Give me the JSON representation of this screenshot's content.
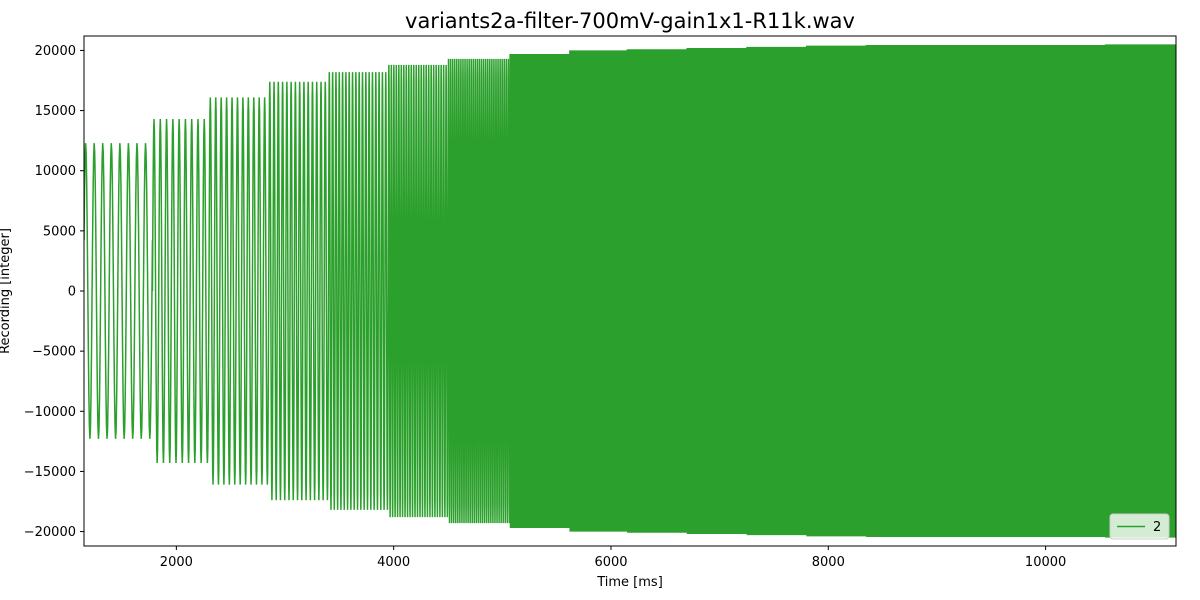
{
  "chart_data": {
    "type": "line",
    "title": "variants2a-filter-700mV-gain1x1-R11k.wav",
    "xlabel": "Time [ms]",
    "ylabel": "Recording [integer]",
    "xlim": [
      1150,
      11200
    ],
    "ylim": [
      -21200,
      21200
    ],
    "x_ticks": [
      2000,
      4000,
      6000,
      8000,
      10000
    ],
    "x_tick_labels": [
      "2000",
      "4000",
      "6000",
      "8000",
      "10000"
    ],
    "y_ticks": [
      -20000,
      -15000,
      -10000,
      -5000,
      0,
      5000,
      10000,
      15000,
      20000
    ],
    "y_tick_labels": [
      "−20000",
      "−15000",
      "−10000",
      "−5000",
      "0",
      "5000",
      "10000",
      "15000",
      "20000"
    ],
    "grid": false,
    "legend_position": "lower-right",
    "series": [
      {
        "name": "2",
        "color": "#2ca02c",
        "description": "stepped frequency sweep; per-step amplitude envelope",
        "steps": [
          {
            "start": 1150,
            "end": 1780,
            "cycles": 8,
            "amplitude": 12300
          },
          {
            "start": 1780,
            "end": 2300,
            "cycles": 9,
            "amplitude": 14300
          },
          {
            "start": 2300,
            "end": 2850,
            "cycles": 11,
            "amplitude": 16100
          },
          {
            "start": 2850,
            "end": 3400,
            "cycles": 14,
            "amplitude": 17400
          },
          {
            "start": 3400,
            "end": 3950,
            "cycles": 18,
            "amplitude": 18200
          },
          {
            "start": 3950,
            "end": 4500,
            "cycles": 24,
            "amplitude": 18800
          },
          {
            "start": 4500,
            "end": 5070,
            "cycles": 30,
            "amplitude": 19300
          },
          {
            "start": 5070,
            "end": 5620,
            "cycles": 80,
            "amplitude": 19700
          },
          {
            "start": 5620,
            "end": 6150,
            "cycles": 90,
            "amplitude": 20000
          },
          {
            "start": 6150,
            "end": 6700,
            "cycles": 90,
            "amplitude": 20100
          },
          {
            "start": 6700,
            "end": 7250,
            "cycles": 90,
            "amplitude": 20200
          },
          {
            "start": 7250,
            "end": 7800,
            "cycles": 90,
            "amplitude": 20300
          },
          {
            "start": 7800,
            "end": 8350,
            "cycles": 90,
            "amplitude": 20400
          },
          {
            "start": 8350,
            "end": 8900,
            "cycles": 90,
            "amplitude": 20450
          },
          {
            "start": 8900,
            "end": 9450,
            "cycles": 90,
            "amplitude": 20450
          },
          {
            "start": 9450,
            "end": 10000,
            "cycles": 90,
            "amplitude": 20450
          },
          {
            "start": 10000,
            "end": 10550,
            "cycles": 90,
            "amplitude": 20450
          },
          {
            "start": 10550,
            "end": 11200,
            "cycles": 100,
            "amplitude": 20500
          }
        ]
      }
    ]
  }
}
